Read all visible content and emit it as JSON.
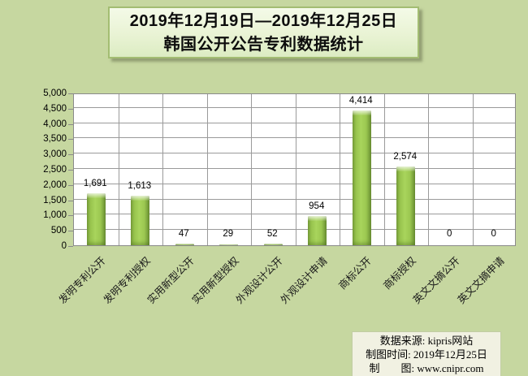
{
  "page": {
    "background_color": "#c6d7a0"
  },
  "title": {
    "line1": "2019年12月19日—2019年12月25日",
    "line2": "韩国公开公告专利数据统计"
  },
  "chart_data": {
    "type": "bar",
    "title": "2019年12月19日—2019年12月25日 韩国公开公告专利数据统计",
    "categories": [
      "发明专利公开",
      "发明专利授权",
      "实用新型公开",
      "实用新型授权",
      "外观设计公开",
      "外观设计申请",
      "商标公开",
      "商标授权",
      "英文文摘公开",
      "英文文摘申请"
    ],
    "values": [
      1691,
      1613,
      47,
      29,
      52,
      954,
      4414,
      2574,
      0,
      0
    ],
    "value_labels": [
      "1,691",
      "1,613",
      "47",
      "29",
      "52",
      "954",
      "4,414",
      "2,574",
      "0",
      "0"
    ],
    "xlabel": "",
    "ylabel": "",
    "ylim": [
      0,
      5000
    ],
    "ytick_step": 500,
    "ytick_labels": [
      "0",
      "500",
      "1,000",
      "1,500",
      "2,000",
      "2,500",
      "3,000",
      "3,500",
      "4,000",
      "4,500",
      "5,000"
    ],
    "grid": "both",
    "legend": "none",
    "colors": {
      "bar_fill": "#8fbe4a",
      "bar_highlight": "#c8e68a",
      "bar_shadow": "#6d9435",
      "plot_background": "#ffffff",
      "gridline": "#9a9a9a",
      "axis": "#8a8a8a",
      "page_background": "#c6d7a0",
      "title_box_background": "#eaf3d6",
      "title_box_border": "#a3bd72",
      "source_box_background": "#f1f1e2"
    }
  },
  "source_box": {
    "lines": [
      "数据来源: kipris网站",
      "制图时间: 2019年12月25日",
      "制　　图: www.cnipr.com"
    ]
  }
}
